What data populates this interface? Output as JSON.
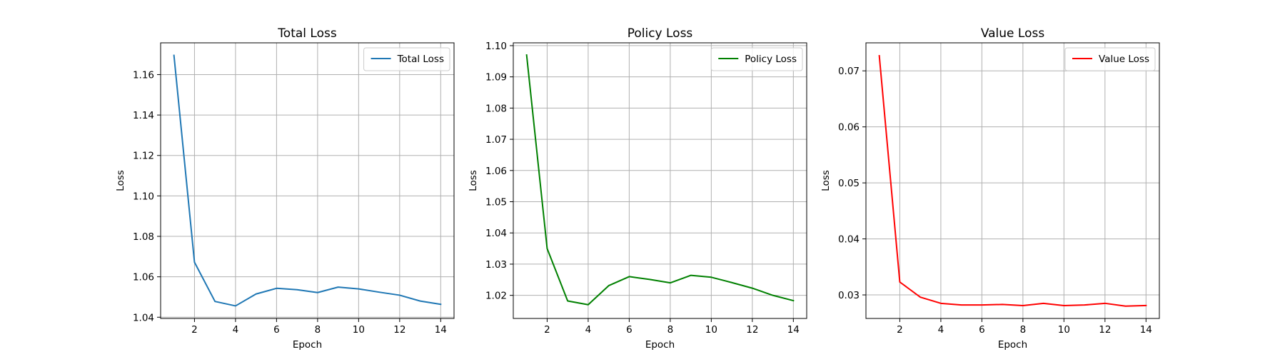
{
  "chart_data": [
    {
      "type": "line",
      "title": "Total Loss",
      "xlabel": "Epoch",
      "ylabel": "Loss",
      "xlim": [
        0.35,
        14.65
      ],
      "ylim": [
        1.0394,
        1.1757
      ],
      "xticks": [
        2,
        4,
        6,
        8,
        10,
        12,
        14
      ],
      "yticks": [
        1.04,
        1.06,
        1.08,
        1.1,
        1.12,
        1.14,
        1.16
      ],
      "tick_decimals": 2,
      "grid": true,
      "legend_position": "top-right",
      "series": [
        {
          "name": "Total Loss",
          "color": "#1f77b4",
          "x": [
            1,
            2,
            3,
            4,
            5,
            6,
            7,
            8,
            9,
            10,
            11,
            12,
            13,
            14
          ],
          "y": [
            1.1695,
            1.0672,
            1.0478,
            1.0456,
            1.0515,
            1.0543,
            1.0536,
            1.0522,
            1.0549,
            1.054,
            1.0524,
            1.0509,
            1.048,
            1.0464
          ]
        }
      ]
    },
    {
      "type": "line",
      "title": "Policy Loss",
      "xlabel": "Epoch",
      "ylabel": "Loss",
      "xlim": [
        0.35,
        14.65
      ],
      "ylim": [
        1.0126,
        1.1009
      ],
      "xticks": [
        2,
        4,
        6,
        8,
        10,
        12,
        14
      ],
      "yticks": [
        1.02,
        1.03,
        1.04,
        1.05,
        1.06,
        1.07,
        1.08,
        1.09,
        1.1
      ],
      "tick_decimals": 2,
      "grid": true,
      "legend_position": "top-right",
      "series": [
        {
          "name": "Policy Loss",
          "color": "#008000",
          "x": [
            1,
            2,
            3,
            4,
            5,
            6,
            7,
            8,
            9,
            10,
            11,
            12,
            13,
            14
          ],
          "y": [
            1.097,
            1.035,
            1.0182,
            1.017,
            1.0231,
            1.026,
            1.0251,
            1.024,
            1.0264,
            1.0258,
            1.0241,
            1.0223,
            1.02,
            1.0183
          ]
        }
      ]
    },
    {
      "type": "line",
      "title": "Value Loss",
      "xlabel": "Epoch",
      "ylabel": "Loss",
      "xlim": [
        0.35,
        14.65
      ],
      "ylim": [
        0.0258,
        0.075
      ],
      "xticks": [
        2,
        4,
        6,
        8,
        10,
        12,
        14
      ],
      "yticks": [
        0.03,
        0.04,
        0.05,
        0.06,
        0.07
      ],
      "tick_decimals": 2,
      "grid": true,
      "legend_position": "top-right",
      "series": [
        {
          "name": "Value Loss",
          "color": "#ff0000",
          "x": [
            1,
            2,
            3,
            4,
            5,
            6,
            7,
            8,
            9,
            10,
            11,
            12,
            13,
            14
          ],
          "y": [
            0.0727,
            0.0323,
            0.0296,
            0.0285,
            0.0282,
            0.0282,
            0.0283,
            0.0281,
            0.0285,
            0.0281,
            0.0282,
            0.0285,
            0.028,
            0.0281
          ]
        }
      ]
    }
  ]
}
